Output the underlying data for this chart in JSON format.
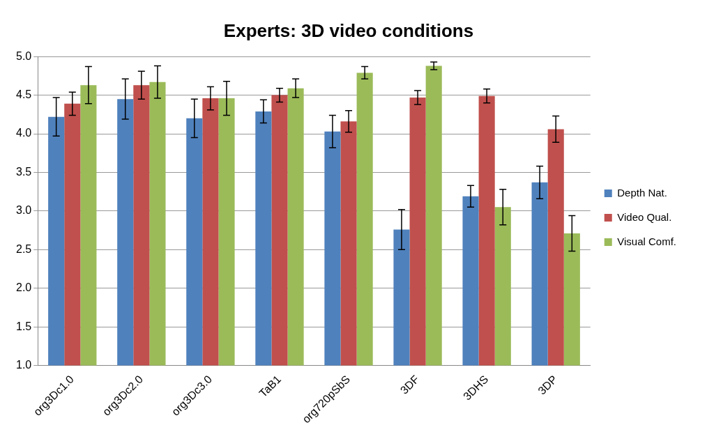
{
  "chart_data": {
    "type": "bar",
    "title": "Experts: 3D video conditions",
    "categories": [
      "org3Dc1.0",
      "org3Dc2.0",
      "org3Dc3.0",
      "TaB1",
      "org720pSbS",
      "3DF",
      "3DHS",
      "3DP"
    ],
    "series": [
      {
        "name": "Depth Nat.",
        "color": "#4f81bd",
        "values": [
          4.22,
          4.45,
          4.2,
          4.29,
          4.03,
          2.76,
          3.19,
          3.37
        ],
        "errors": [
          0.25,
          0.26,
          0.25,
          0.15,
          0.21,
          0.26,
          0.14,
          0.21
        ]
      },
      {
        "name": "Video Qual.",
        "color": "#c0504d",
        "values": [
          4.39,
          4.63,
          4.46,
          4.5,
          4.16,
          4.47,
          4.49,
          4.06
        ],
        "errors": [
          0.15,
          0.18,
          0.15,
          0.09,
          0.14,
          0.09,
          0.09,
          0.17
        ]
      },
      {
        "name": "Visual Comf.",
        "color": "#9bbb59",
        "values": [
          4.63,
          4.67,
          4.46,
          4.59,
          4.79,
          4.88,
          3.05,
          2.71
        ],
        "errors": [
          0.24,
          0.21,
          0.22,
          0.12,
          0.08,
          0.05,
          0.23,
          0.23
        ]
      }
    ],
    "ylim": [
      1,
      5
    ],
    "yticks": [
      {
        "value": 1,
        "label": "1.0"
      },
      1.5,
      {
        "value": 2,
        "label": "2.0"
      },
      2.5,
      {
        "value": 3,
        "label": "3.0"
      },
      3.5,
      {
        "value": 4,
        "label": "4.0"
      },
      4.5,
      {
        "value": 5,
        "label": "5.0"
      }
    ],
    "grid": "y",
    "legend": "right"
  }
}
